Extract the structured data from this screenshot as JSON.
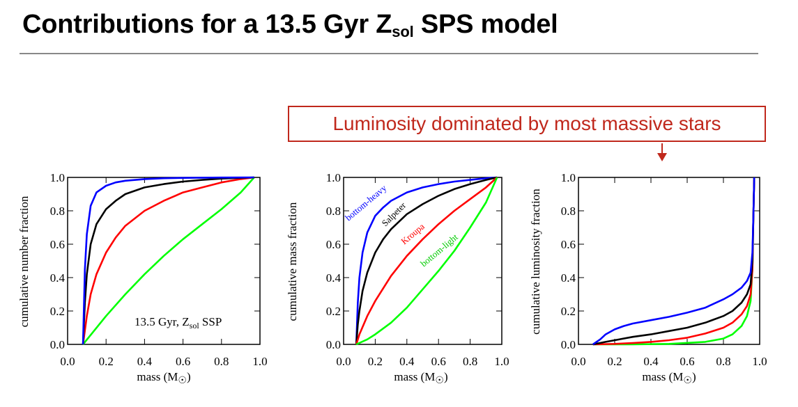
{
  "slide": {
    "title_main": "Contributions for a 13.5 Gyr Z",
    "title_sub": "sol",
    "title_end": " SPS model",
    "callout": "Luminosity dominated by most massive stars",
    "colors": {
      "callout": "#c0281c"
    }
  },
  "chart_data": [
    {
      "type": "line",
      "xlabel": "mass (M",
      "xlabel_sym": "☉",
      "xlabel_end": ")",
      "ylabel": "cumulative number fraction",
      "xlim": [
        0,
        1
      ],
      "ylim": [
        0,
        1
      ],
      "xticks": [
        "0.0",
        "0.2",
        "0.4",
        "0.6",
        "0.8",
        "1.0"
      ],
      "yticks": [
        "0.0",
        "0.2",
        "0.4",
        "0.6",
        "0.8",
        "1.0"
      ],
      "annotation": {
        "text": "13.5 Gyr, Z",
        "sub": "sol",
        "end": " SSP"
      },
      "series": [
        {
          "color": "#00ff00",
          "x": [
            0.08,
            0.2,
            0.3,
            0.4,
            0.5,
            0.6,
            0.7,
            0.8,
            0.9,
            0.97
          ],
          "y": [
            0.0,
            0.17,
            0.3,
            0.42,
            0.53,
            0.63,
            0.72,
            0.81,
            0.91,
            1.0
          ]
        },
        {
          "color": "#ff0000",
          "x": [
            0.08,
            0.1,
            0.12,
            0.15,
            0.2,
            0.25,
            0.3,
            0.4,
            0.5,
            0.6,
            0.7,
            0.8,
            0.9,
            0.97
          ],
          "y": [
            0.0,
            0.17,
            0.3,
            0.42,
            0.55,
            0.64,
            0.71,
            0.8,
            0.86,
            0.91,
            0.94,
            0.97,
            0.99,
            1.0
          ]
        },
        {
          "color": "#000000",
          "x": [
            0.08,
            0.09,
            0.1,
            0.12,
            0.15,
            0.2,
            0.25,
            0.3,
            0.4,
            0.5,
            0.6,
            0.7,
            0.8,
            0.97
          ],
          "y": [
            0.0,
            0.25,
            0.42,
            0.6,
            0.72,
            0.81,
            0.86,
            0.9,
            0.94,
            0.96,
            0.975,
            0.985,
            0.993,
            1.0
          ]
        },
        {
          "color": "#0000ff",
          "x": [
            0.08,
            0.09,
            0.1,
            0.12,
            0.15,
            0.2,
            0.25,
            0.3,
            0.4,
            0.5,
            0.6,
            0.8,
            0.97
          ],
          "y": [
            0.0,
            0.45,
            0.66,
            0.83,
            0.91,
            0.95,
            0.97,
            0.98,
            0.99,
            0.995,
            0.997,
            0.999,
            1.0
          ]
        }
      ]
    },
    {
      "type": "line",
      "xlabel": "mass (M",
      "xlabel_sym": "☉",
      "xlabel_end": ")",
      "ylabel": "cumulative mass fraction",
      "xlim": [
        0,
        1
      ],
      "ylim": [
        0,
        1
      ],
      "xticks": [
        "0.0",
        "0.2",
        "0.4",
        "0.6",
        "0.8",
        "1.0"
      ],
      "yticks": [
        "0.0",
        "0.2",
        "0.4",
        "0.6",
        "0.8",
        "1.0"
      ],
      "series": [
        {
          "name": "bottom-heavy",
          "color": "#0000ff",
          "x": [
            0.08,
            0.09,
            0.1,
            0.12,
            0.15,
            0.2,
            0.25,
            0.3,
            0.4,
            0.5,
            0.6,
            0.7,
            0.8,
            0.9,
            0.97
          ],
          "y": [
            0.0,
            0.25,
            0.4,
            0.55,
            0.67,
            0.77,
            0.82,
            0.86,
            0.91,
            0.94,
            0.96,
            0.975,
            0.985,
            0.995,
            1.0
          ]
        },
        {
          "name": "Salpeter",
          "color": "#000000",
          "x": [
            0.08,
            0.09,
            0.1,
            0.12,
            0.15,
            0.2,
            0.25,
            0.3,
            0.4,
            0.5,
            0.6,
            0.7,
            0.8,
            0.9,
            0.97
          ],
          "y": [
            0.0,
            0.12,
            0.2,
            0.32,
            0.43,
            0.55,
            0.63,
            0.69,
            0.78,
            0.84,
            0.89,
            0.93,
            0.96,
            0.985,
            1.0
          ]
        },
        {
          "name": "Kroupa",
          "color": "#ff0000",
          "x": [
            0.08,
            0.1,
            0.15,
            0.2,
            0.3,
            0.4,
            0.5,
            0.6,
            0.7,
            0.8,
            0.9,
            0.97
          ],
          "y": [
            0.0,
            0.06,
            0.17,
            0.26,
            0.41,
            0.53,
            0.63,
            0.72,
            0.8,
            0.87,
            0.94,
            1.0
          ]
        },
        {
          "name": "bottom-light",
          "color": "#00ff00",
          "x": [
            0.08,
            0.15,
            0.2,
            0.3,
            0.4,
            0.5,
            0.6,
            0.7,
            0.8,
            0.9,
            0.97
          ],
          "y": [
            0.0,
            0.03,
            0.06,
            0.13,
            0.22,
            0.33,
            0.44,
            0.56,
            0.7,
            0.85,
            1.0
          ]
        }
      ]
    },
    {
      "type": "line",
      "xlabel": "mass (M",
      "xlabel_sym": "☉",
      "xlabel_end": ")",
      "ylabel": "cumulative luminosity fraction",
      "xlim": [
        0,
        1
      ],
      "ylim": [
        0,
        1
      ],
      "xticks": [
        "0.0",
        "0.2",
        "0.4",
        "0.6",
        "0.8",
        "1.0"
      ],
      "yticks": [
        "0.0",
        "0.2",
        "0.4",
        "0.6",
        "0.8",
        "1.0"
      ],
      "series": [
        {
          "color": "#00ff00",
          "x": [
            0.08,
            0.3,
            0.5,
            0.7,
            0.8,
            0.85,
            0.9,
            0.93,
            0.95,
            0.96,
            0.965,
            0.97
          ],
          "y": [
            0.0,
            0.0,
            0.003,
            0.015,
            0.035,
            0.06,
            0.11,
            0.17,
            0.26,
            0.45,
            0.75,
            1.0
          ]
        },
        {
          "color": "#ff0000",
          "x": [
            0.08,
            0.2,
            0.3,
            0.4,
            0.5,
            0.6,
            0.7,
            0.8,
            0.85,
            0.9,
            0.93,
            0.95,
            0.96,
            0.965,
            0.97
          ],
          "y": [
            0.0,
            0.003,
            0.008,
            0.015,
            0.025,
            0.04,
            0.065,
            0.1,
            0.13,
            0.18,
            0.23,
            0.3,
            0.45,
            0.75,
            1.0
          ]
        },
        {
          "color": "#000000",
          "x": [
            0.08,
            0.15,
            0.2,
            0.3,
            0.4,
            0.5,
            0.6,
            0.7,
            0.8,
            0.85,
            0.9,
            0.93,
            0.95,
            0.96,
            0.965,
            0.97
          ],
          "y": [
            0.0,
            0.015,
            0.025,
            0.045,
            0.06,
            0.08,
            0.1,
            0.13,
            0.17,
            0.2,
            0.25,
            0.3,
            0.36,
            0.5,
            0.75,
            1.0
          ]
        },
        {
          "color": "#0000ff",
          "x": [
            0.08,
            0.12,
            0.15,
            0.2,
            0.25,
            0.3,
            0.4,
            0.5,
            0.6,
            0.7,
            0.8,
            0.85,
            0.9,
            0.93,
            0.95,
            0.96,
            0.965,
            0.97
          ],
          "y": [
            0.0,
            0.03,
            0.06,
            0.09,
            0.11,
            0.125,
            0.145,
            0.165,
            0.19,
            0.22,
            0.27,
            0.3,
            0.34,
            0.38,
            0.43,
            0.55,
            0.75,
            1.0
          ]
        }
      ]
    }
  ]
}
